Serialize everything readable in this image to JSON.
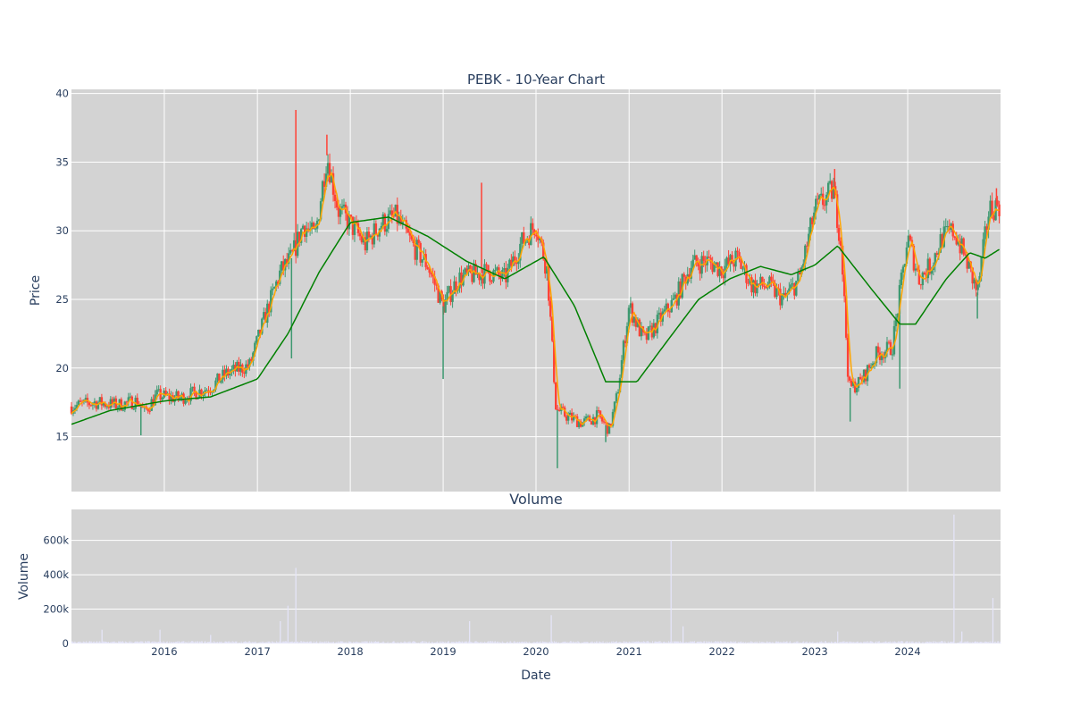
{
  "chart_data": [
    {
      "type": "candlestick",
      "title": "PEBK - 10-Year Chart",
      "ylabel": "Price",
      "ylim": [
        11,
        40.3
      ],
      "xlim": [
        "2015-01-01",
        "2024-12-31"
      ],
      "yticks": [
        15,
        20,
        25,
        30,
        35,
        40
      ],
      "xticks": [
        "2016",
        "2017",
        "2018",
        "2019",
        "2020",
        "2021",
        "2022",
        "2023",
        "2024"
      ],
      "grid": true,
      "colors": {
        "up": "#3d9970",
        "down": "#ff4136",
        "ma_short": "#ffa500",
        "ma_long": "#008000",
        "background": "#d3d3d3"
      },
      "price_path": [
        [
          "2015-01-01",
          17.2
        ],
        [
          "2015-02-01",
          17.3
        ],
        [
          "2015-04-01",
          17.5
        ],
        [
          "2015-07-01",
          17.3
        ],
        [
          "2015-09-15",
          17.6
        ],
        [
          "2015-10-15",
          16.8
        ],
        [
          "2015-12-01",
          18.0
        ],
        [
          "2016-03-01",
          17.8
        ],
        [
          "2016-07-01",
          18.6
        ],
        [
          "2016-09-01",
          19.6
        ],
        [
          "2016-12-01",
          20.2
        ],
        [
          "2017-02-01",
          23.8
        ],
        [
          "2017-04-01",
          27.0
        ],
        [
          "2017-05-15",
          28.0
        ],
        [
          "2017-07-01",
          30.5
        ],
        [
          "2017-08-15",
          29.5
        ],
        [
          "2017-10-01",
          35.5
        ],
        [
          "2017-11-15",
          31.5
        ],
        [
          "2018-01-01",
          30.5
        ],
        [
          "2018-03-01",
          29.0
        ],
        [
          "2018-05-01",
          30.5
        ],
        [
          "2018-07-01",
          31.0
        ],
        [
          "2018-09-01",
          29.0
        ],
        [
          "2018-11-01",
          27.5
        ],
        [
          "2019-01-01",
          24.5
        ],
        [
          "2019-03-01",
          26.5
        ],
        [
          "2019-05-01",
          26.8
        ],
        [
          "2019-07-01",
          27.0
        ],
        [
          "2019-09-01",
          26.5
        ],
        [
          "2019-11-01",
          29.0
        ],
        [
          "2020-01-01",
          30.5
        ],
        [
          "2020-02-15",
          27.0
        ],
        [
          "2020-03-20",
          17.0
        ],
        [
          "2020-05-01",
          16.5
        ],
        [
          "2020-07-01",
          16.0
        ],
        [
          "2020-09-01",
          16.5
        ],
        [
          "2020-10-15",
          15.5
        ],
        [
          "2020-11-15",
          18.0
        ],
        [
          "2021-01-01",
          24.5
        ],
        [
          "2021-03-01",
          22.0
        ],
        [
          "2021-05-01",
          23.5
        ],
        [
          "2021-07-01",
          25.0
        ],
        [
          "2021-09-01",
          27.5
        ],
        [
          "2021-11-01",
          27.8
        ],
        [
          "2022-01-01",
          27.2
        ],
        [
          "2022-03-01",
          28.0
        ],
        [
          "2022-05-01",
          26.0
        ],
        [
          "2022-07-01",
          26.0
        ],
        [
          "2022-09-01",
          25.0
        ],
        [
          "2022-11-01",
          26.5
        ],
        [
          "2023-01-01",
          31.5
        ],
        [
          "2023-03-15",
          33.0
        ],
        [
          "2023-04-15",
          29.0
        ],
        [
          "2023-05-15",
          18.5
        ],
        [
          "2023-07-01",
          19.0
        ],
        [
          "2023-09-01",
          21.0
        ],
        [
          "2023-11-01",
          21.5
        ],
        [
          "2024-01-01",
          29.5
        ],
        [
          "2024-02-15",
          26.5
        ],
        [
          "2024-04-01",
          27.5
        ],
        [
          "2024-05-15",
          29.5
        ],
        [
          "2024-07-01",
          30.0
        ],
        [
          "2024-08-15",
          28.0
        ],
        [
          "2024-10-01",
          25.5
        ],
        [
          "2024-11-15",
          31.5
        ],
        [
          "2024-12-31",
          32.0
        ]
      ],
      "outlier_highs": [
        [
          "2017-06-01",
          38.8
        ],
        [
          "2019-06-01",
          33.5
        ],
        [
          "2017-10-01",
          37.0
        ],
        [
          "2023-03-20",
          34.5
        ],
        [
          "2024-12-15",
          33.1
        ]
      ],
      "outlier_lows": [
        [
          "2015-10-01",
          15.1
        ],
        [
          "2017-05-15",
          20.7
        ],
        [
          "2019-01-01",
          19.2
        ],
        [
          "2020-03-25",
          12.7
        ],
        [
          "2020-10-01",
          14.6
        ],
        [
          "2023-05-20",
          16.1
        ],
        [
          "2023-12-01",
          18.5
        ],
        [
          "2024-10-01",
          23.6
        ]
      ],
      "ma_long": [
        [
          "2015-01-01",
          15.9
        ],
        [
          "2015-06-01",
          16.9
        ],
        [
          "2016-01-01",
          17.6
        ],
        [
          "2016-07-01",
          17.9
        ],
        [
          "2017-01-01",
          19.2
        ],
        [
          "2017-05-01",
          22.5
        ],
        [
          "2017-09-01",
          27.0
        ],
        [
          "2018-01-01",
          30.6
        ],
        [
          "2018-06-01",
          31.0
        ],
        [
          "2018-11-01",
          29.6
        ],
        [
          "2019-04-01",
          27.8
        ],
        [
          "2019-09-01",
          26.5
        ],
        [
          "2020-02-01",
          28.1
        ],
        [
          "2020-06-01",
          24.5
        ],
        [
          "2020-10-01",
          19.0
        ],
        [
          "2021-02-01",
          19.0
        ],
        [
          "2021-06-01",
          22.0
        ],
        [
          "2021-10-01",
          25.0
        ],
        [
          "2022-02-01",
          26.5
        ],
        [
          "2022-06-01",
          27.4
        ],
        [
          "2022-10-01",
          26.8
        ],
        [
          "2023-01-01",
          27.5
        ],
        [
          "2023-04-01",
          28.9
        ],
        [
          "2023-08-01",
          26.0
        ],
        [
          "2023-12-01",
          23.2
        ],
        [
          "2024-02-01",
          23.2
        ],
        [
          "2024-06-01",
          26.5
        ],
        [
          "2024-09-01",
          28.4
        ],
        [
          "2024-11-01",
          28.0
        ],
        [
          "2024-12-31",
          28.7
        ]
      ]
    },
    {
      "type": "bar",
      "title": "Volume",
      "xlabel": "Date",
      "ylabel": "Volume",
      "ylim": [
        0,
        780000
      ],
      "yticks": [
        0,
        200000,
        400000,
        600000
      ],
      "ytick_labels": [
        "0",
        "200k",
        "400k",
        "600k"
      ],
      "baseline_volume": 8000,
      "spikes": [
        [
          "2015-05-01",
          80000
        ],
        [
          "2015-12-15",
          80000
        ],
        [
          "2016-07-01",
          50000
        ],
        [
          "2017-04-01",
          130000
        ],
        [
          "2017-05-01",
          220000
        ],
        [
          "2017-06-01",
          440000
        ],
        [
          "2019-04-15",
          130000
        ],
        [
          "2020-03-01",
          165000
        ],
        [
          "2021-06-15",
          600000
        ],
        [
          "2021-08-01",
          100000
        ],
        [
          "2023-04-01",
          70000
        ],
        [
          "2024-07-01",
          750000
        ],
        [
          "2024-08-01",
          70000
        ],
        [
          "2024-12-01",
          265000
        ]
      ]
    }
  ]
}
